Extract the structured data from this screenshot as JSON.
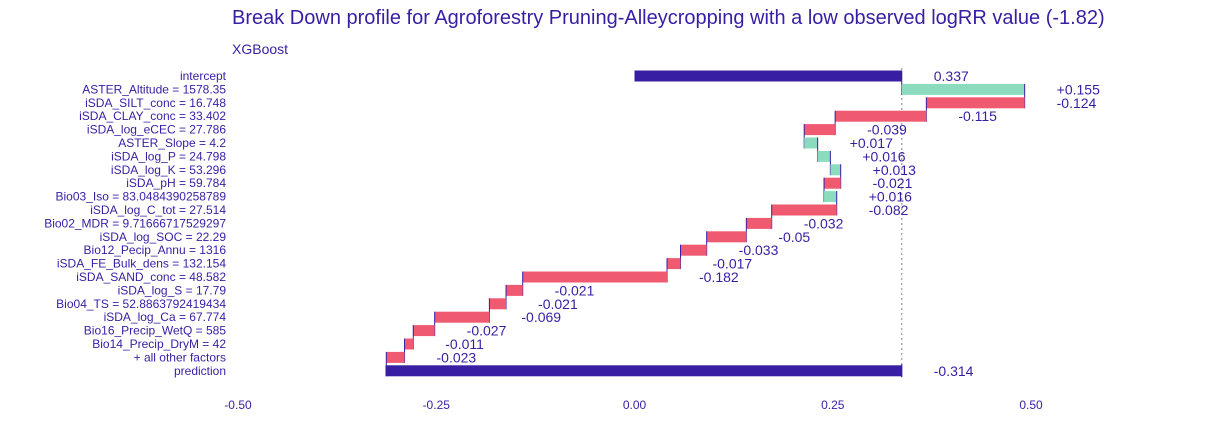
{
  "chart_data": {
    "type": "bar",
    "title": "Break Down profile for Agroforestry Pruning-Alleycropping with a low observed logRR value (-1.82)",
    "subtitle": "XGBoost",
    "xlim": [
      -0.5,
      0.5
    ],
    "x_ticks": [
      -0.5,
      -0.25,
      0.0,
      0.25,
      0.5
    ],
    "x_tick_labels": [
      "-0.50",
      "-0.25",
      "0.00",
      "0.25",
      "0.50"
    ],
    "colors": {
      "text": "#371ea3",
      "positive": "#8bdcbe",
      "negative": "#f05a71",
      "intercept_prediction": "#371ea3",
      "connector": "#371ea3",
      "reference_line": "#9a9a9a"
    },
    "rows": [
      {
        "label": "intercept",
        "value_label": "0.337",
        "start": 0.0,
        "end": 0.337,
        "kind": "intercept"
      },
      {
        "label": "ASTER_Altitude = 1578.35",
        "value_label": "+0.155",
        "start": 0.337,
        "end": 0.492,
        "kind": "positive"
      },
      {
        "label": "iSDA_SILT_conc = 16.748",
        "value_label": "-0.124",
        "start": 0.492,
        "end": 0.368,
        "kind": "negative"
      },
      {
        "label": "iSDA_CLAY_conc = 33.402",
        "value_label": "-0.115",
        "start": 0.368,
        "end": 0.253,
        "kind": "negative"
      },
      {
        "label": "iSDA_log_eCEC = 27.786",
        "value_label": "-0.039",
        "start": 0.253,
        "end": 0.214,
        "kind": "negative"
      },
      {
        "label": "ASTER_Slope = 4.2",
        "value_label": "+0.017",
        "start": 0.214,
        "end": 0.231,
        "kind": "positive"
      },
      {
        "label": "iSDA_log_P = 24.798",
        "value_label": "+0.016",
        "start": 0.231,
        "end": 0.247,
        "kind": "positive"
      },
      {
        "label": "iSDA_log_K = 53.296",
        "value_label": "+0.013",
        "start": 0.247,
        "end": 0.26,
        "kind": "positive"
      },
      {
        "label": "iSDA_pH = 59.784",
        "value_label": "-0.021",
        "start": 0.26,
        "end": 0.239,
        "kind": "negative"
      },
      {
        "label": "Bio03_Iso = 83.0484390258789",
        "value_label": "+0.016",
        "start": 0.239,
        "end": 0.255,
        "kind": "positive"
      },
      {
        "label": "iSDA_log_C_tot = 27.514",
        "value_label": "-0.082",
        "start": 0.255,
        "end": 0.173,
        "kind": "negative"
      },
      {
        "label": "Bio02_MDR = 9.71666717529297",
        "value_label": "-0.032",
        "start": 0.173,
        "end": 0.141,
        "kind": "negative"
      },
      {
        "label": "iSDA_log_SOC = 22.29",
        "value_label": "-0.05",
        "start": 0.141,
        "end": 0.091,
        "kind": "negative"
      },
      {
        "label": "Bio12_Pecip_Annu = 1316",
        "value_label": "-0.033",
        "start": 0.091,
        "end": 0.058,
        "kind": "negative"
      },
      {
        "label": "iSDA_FE_Bulk_dens = 132.154",
        "value_label": "-0.017",
        "start": 0.058,
        "end": 0.041,
        "kind": "negative"
      },
      {
        "label": "iSDA_SAND_conc = 48.582",
        "value_label": "-0.182",
        "start": 0.041,
        "end": -0.141,
        "kind": "negative"
      },
      {
        "label": "iSDA_log_S = 17.79",
        "value_label": "-0.021",
        "start": -0.141,
        "end": -0.162,
        "kind": "negative"
      },
      {
        "label": "Bio04_TS = 52.8863792419434",
        "value_label": "-0.021",
        "start": -0.162,
        "end": -0.183,
        "kind": "negative"
      },
      {
        "label": "iSDA_log_Ca = 67.774",
        "value_label": "-0.069",
        "start": -0.183,
        "end": -0.252,
        "kind": "negative"
      },
      {
        "label": "Bio16_Precip_WetQ = 585",
        "value_label": "-0.027",
        "start": -0.252,
        "end": -0.279,
        "kind": "negative"
      },
      {
        "label": "Bio14_Precip_DryM = 42",
        "value_label": "-0.011",
        "start": -0.279,
        "end": -0.29,
        "kind": "negative"
      },
      {
        "label": "+ all other factors",
        "value_label": "-0.023",
        "start": -0.29,
        "end": -0.313,
        "kind": "negative"
      },
      {
        "label": "prediction",
        "value_label": "-0.314",
        "start": 0.337,
        "end": -0.314,
        "kind": "prediction"
      }
    ],
    "reference_value": 0.337,
    "grid": false,
    "legend": "none"
  }
}
